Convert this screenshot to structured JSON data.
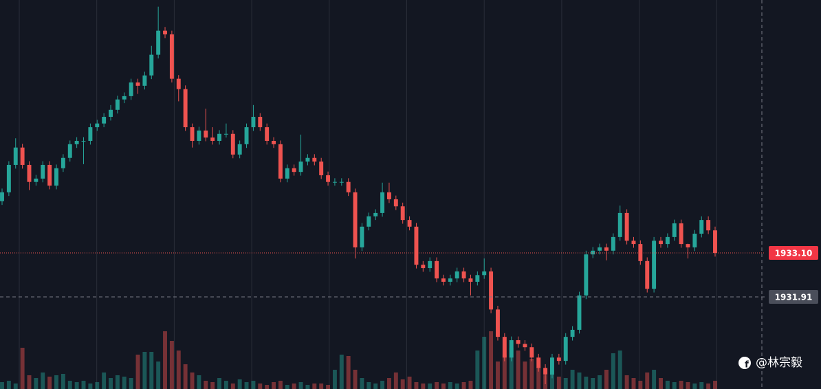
{
  "chart_data": {
    "type": "candlestick",
    "up_color": "#26a69a",
    "down_color": "#ef5350",
    "ylim": [
      1929.42,
      1939.94
    ],
    "vlim": [
      0,
      100
    ],
    "last_price": {
      "value": 1933.1,
      "label": "1933.10"
    },
    "crosshair_price": 1931.91,
    "watermark": "@林宗毅",
    "open": [
      1934.5,
      1934.74,
      1935.48,
      1935.95,
      1935.48,
      1935.02,
      1935.11,
      1935.48,
      1934.92,
      1935.39,
      1935.67,
      1936.04,
      1936.13,
      1936.13,
      1936.5,
      1936.6,
      1936.78,
      1936.97,
      1937.25,
      1937.34,
      1937.71,
      1937.62,
      1937.9,
      1938.46,
      1939.11,
      1939.01,
      1937.81,
      1937.53,
      1936.5,
      1936.13,
      1936.41,
      1936.22,
      1936.13,
      1936.32,
      1936.32,
      1935.76,
      1936.04,
      1936.5,
      1936.78,
      1936.5,
      1936.13,
      1936.04,
      1935.11,
      1935.39,
      1935.29,
      1935.57,
      1935.67,
      1935.57,
      1935.2,
      1935.02,
      1935.02,
      1935.02,
      1934.74,
      1933.25,
      1933.81,
      1934.09,
      1934.18,
      1934.74,
      1934.55,
      1934.36,
      1933.99,
      1933.81,
      1932.78,
      1932.69,
      1932.88,
      1932.41,
      1932.32,
      1932.41,
      1932.6,
      1932.41,
      1932.32,
      1932.5,
      1932.6,
      1931.57,
      1930.83,
      1930.27,
      1930.74,
      1930.64,
      1930.55,
      1930.27,
      1929.99,
      1929.81,
      1930.27,
      1930.18,
      1930.83,
      1931.02,
      1931.95,
      1933.06,
      1933.16,
      1933.25,
      1933.16,
      1933.53,
      1934.18,
      1933.43,
      1933.34,
      1932.88,
      1932.13,
      1933.43,
      1933.34,
      1933.53,
      1933.9,
      1933.34,
      1933.25,
      1933.62,
      1933.99,
      1933.71
    ],
    "high": [
      1934.84,
      1935.58,
      1936.2,
      1936.05,
      1935.58,
      1935.21,
      1935.58,
      1935.58,
      1935.49,
      1935.77,
      1936.14,
      1936.23,
      1936.23,
      1936.6,
      1936.7,
      1936.88,
      1937.1,
      1937.35,
      1937.44,
      1937.81,
      1937.81,
      1938.0,
      1938.7,
      1939.76,
      1939.21,
      1939.11,
      1937.91,
      1937.63,
      1936.6,
      1936.51,
      1937.0,
      1936.5,
      1936.42,
      1936.6,
      1936.42,
      1936.14,
      1936.6,
      1937.1,
      1936.88,
      1936.6,
      1936.23,
      1936.14,
      1935.49,
      1935.49,
      1936.3,
      1935.77,
      1935.77,
      1935.67,
      1935.3,
      1935.12,
      1935.12,
      1935.12,
      1934.84,
      1933.91,
      1934.19,
      1934.28,
      1935.0,
      1935.0,
      1934.65,
      1934.46,
      1934.09,
      1933.91,
      1932.88,
      1932.98,
      1932.98,
      1932.51,
      1932.51,
      1932.7,
      1932.7,
      1932.51,
      1932.6,
      1932.95,
      1932.7,
      1931.67,
      1930.93,
      1930.84,
      1930.84,
      1930.74,
      1930.65,
      1930.37,
      1930.09,
      1930.37,
      1930.37,
      1930.93,
      1931.12,
      1932.05,
      1933.16,
      1933.26,
      1933.35,
      1933.35,
      1933.63,
      1934.38,
      1934.28,
      1933.53,
      1933.44,
      1932.98,
      1933.53,
      1933.53,
      1933.63,
      1934.0,
      1934.0,
      1933.35,
      1933.72,
      1934.09,
      1934.09,
      1933.81
    ],
    "low": [
      1934.4,
      1934.64,
      1935.38,
      1935.38,
      1934.8,
      1934.92,
      1935.01,
      1934.82,
      1934.82,
      1935.29,
      1935.57,
      1935.94,
      1935.5,
      1936.03,
      1936.4,
      1936.5,
      1936.68,
      1936.87,
      1937.15,
      1937.24,
      1937.4,
      1937.52,
      1937.8,
      1938.36,
      1938.91,
      1937.71,
      1937.2,
      1936.4,
      1935.95,
      1936.03,
      1936.12,
      1936.03,
      1936.03,
      1936.22,
      1935.66,
      1935.66,
      1935.94,
      1936.4,
      1936.4,
      1936.03,
      1935.94,
      1935.01,
      1935.01,
      1935.19,
      1935.19,
      1935.47,
      1935.47,
      1935.1,
      1934.92,
      1934.92,
      1934.92,
      1934.64,
      1932.95,
      1933.15,
      1933.71,
      1933.99,
      1934.08,
      1934.45,
      1934.26,
      1933.89,
      1933.71,
      1932.68,
      1932.59,
      1932.59,
      1932.31,
      1932.22,
      1932.22,
      1932.31,
      1932.31,
      1931.95,
      1932.22,
      1932.4,
      1931.47,
      1930.73,
      1930.17,
      1930.17,
      1930.54,
      1930.45,
      1930.17,
      1929.89,
      1929.55,
      1929.71,
      1930.08,
      1930.08,
      1930.73,
      1930.92,
      1931.85,
      1932.96,
      1933.06,
      1932.9,
      1933.06,
      1933.43,
      1933.33,
      1933.24,
      1932.78,
      1932.03,
      1932.03,
      1933.24,
      1933.24,
      1933.43,
      1933.24,
      1932.95,
      1933.15,
      1933.52,
      1933.61,
      1933.0
    ],
    "close": [
      1934.74,
      1935.48,
      1935.95,
      1935.48,
      1935.02,
      1935.11,
      1935.48,
      1934.92,
      1935.39,
      1935.67,
      1936.04,
      1936.13,
      1936.13,
      1936.5,
      1936.6,
      1936.78,
      1936.97,
      1937.25,
      1937.34,
      1937.71,
      1937.62,
      1937.9,
      1938.46,
      1939.11,
      1939.01,
      1937.81,
      1937.53,
      1936.5,
      1936.13,
      1936.41,
      1936.22,
      1936.13,
      1936.32,
      1936.32,
      1935.76,
      1936.04,
      1936.5,
      1936.78,
      1936.5,
      1936.13,
      1936.04,
      1935.11,
      1935.39,
      1935.29,
      1935.57,
      1935.67,
      1935.57,
      1935.2,
      1935.02,
      1935.02,
      1935.02,
      1934.74,
      1933.25,
      1933.81,
      1934.09,
      1934.18,
      1934.74,
      1934.55,
      1934.36,
      1933.99,
      1933.81,
      1932.78,
      1932.69,
      1932.88,
      1932.41,
      1932.32,
      1932.41,
      1932.6,
      1932.41,
      1932.32,
      1932.5,
      1932.6,
      1931.57,
      1930.83,
      1930.27,
      1930.74,
      1930.64,
      1930.55,
      1930.27,
      1929.99,
      1929.81,
      1930.27,
      1930.18,
      1930.83,
      1931.02,
      1931.95,
      1933.06,
      1933.16,
      1933.25,
      1933.16,
      1933.53,
      1934.18,
      1933.43,
      1933.34,
      1932.88,
      1932.13,
      1933.43,
      1933.34,
      1933.53,
      1933.9,
      1933.34,
      1933.25,
      1933.62,
      1933.99,
      1933.71,
      1933.1
    ],
    "volume": [
      5,
      6,
      4,
      30,
      10,
      8,
      12,
      9,
      10,
      11,
      6,
      5,
      6,
      4,
      5,
      12,
      8,
      10,
      9,
      8,
      25,
      27,
      27,
      20,
      42,
      35,
      28,
      18,
      12,
      10,
      6,
      5,
      8,
      6,
      4,
      7,
      5,
      6,
      4,
      3,
      5,
      6,
      3,
      4,
      5,
      3,
      4,
      4,
      3,
      14,
      25,
      24,
      14,
      8,
      5,
      4,
      6,
      8,
      12,
      7,
      9,
      5,
      4,
      4,
      5,
      4,
      5,
      4,
      5,
      6,
      28,
      38,
      42,
      20,
      25,
      30,
      28,
      20,
      22,
      16,
      10,
      12,
      9,
      8,
      14,
      12,
      9,
      8,
      10,
      14,
      26,
      28,
      10,
      8,
      6,
      12,
      14,
      8,
      6,
      5,
      6,
      5,
      4,
      5,
      4,
      6
    ]
  }
}
